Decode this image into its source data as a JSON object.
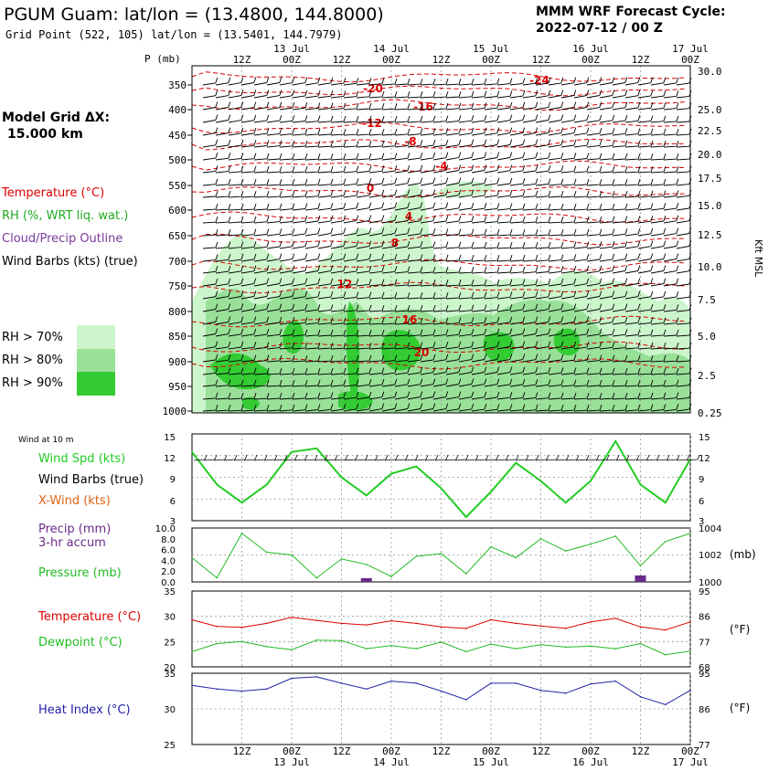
{
  "header": {
    "title": "PGUM Guam:  lat/lon = (13.4800, 144.8000)",
    "subtitle": "Grid Point (522, 105) lat/lon = (13.5401, 144.7979)",
    "forecast_label": "MMM WRF Forecast Cycle:",
    "forecast_cycle": "2022-07-12 / 00  Z",
    "model_grid_label": "Model Grid ΔX:",
    "model_grid_value": "15.000 km",
    "pressure_axis_title": "P (mb)",
    "height_axis_title": "Kft MSL"
  },
  "time_axis": {
    "hour_labels": [
      "12Z",
      "00Z",
      "12Z",
      "00Z",
      "12Z",
      "00Z",
      "12Z",
      "00Z",
      "12Z",
      "00Z"
    ],
    "date_labels": [
      "13 Jul",
      "14 Jul",
      "15 Jul",
      "16 Jul",
      "17 Jul"
    ]
  },
  "legend": {
    "temperature": "Temperature (°C)",
    "rh": "RH (%, WRT liq. wat.)",
    "cloud": "Cloud/Precip Outline",
    "barbs": "Wind Barbs (kts) (true)",
    "rh70": "RH > 70%",
    "rh80": "RH > 80%",
    "rh90": "RH > 90%"
  },
  "colors": {
    "temperature": "#dd0000",
    "rh70": "#ccf5cc",
    "rh80": "#99e099",
    "rh90": "#33cc33",
    "wind_speed": "#22cc22",
    "x_wind": "#e06010",
    "precip": "#6a2a8a",
    "pressure": "#22bb22",
    "dewpoint": "#22bb22",
    "heat_index": "#2222aa",
    "grid": "#999999"
  },
  "chart_data": [
    {
      "type": "heatmap",
      "title": "",
      "yaxis_pressure_ticks": [
        "350",
        "400",
        "450",
        "500",
        "550",
        "600",
        "650",
        "700",
        "750",
        "800",
        "850",
        "900",
        "950",
        "1000"
      ],
      "yaxis_height_ticks": [
        "30.0",
        "25.0",
        "22.5",
        "20.0",
        "17.5",
        "15.0",
        "12.5",
        "10.0",
        "7.5",
        "5.0",
        "2.5",
        "0.25"
      ],
      "temperature_contour_labels": [
        "-24",
        "-20",
        "-16",
        "-12",
        "-8",
        "-4",
        "0",
        "4",
        "8",
        "12",
        "16",
        "20"
      ]
    },
    {
      "type": "line",
      "panel_label": "Wind at 10 m",
      "legend": [
        "Wind Spd (kts)",
        "Wind Barbs (true)",
        "X-Wind (kts)"
      ],
      "y_ticks": [
        "15",
        "12",
        "9",
        "6",
        "3"
      ],
      "ylim": [
        3,
        15
      ],
      "x_hours": [
        0,
        6,
        12,
        18,
        24,
        30,
        36,
        42,
        48,
        54,
        60,
        66,
        72,
        78,
        84,
        90,
        96,
        102,
        108,
        114,
        120
      ],
      "series": [
        {
          "name": "Wind Spd (kts)",
          "values": [
            12.5,
            8.0,
            5.5,
            8.0,
            12.5,
            13.0,
            9.0,
            6.5,
            9.5,
            10.5,
            7.5,
            3.5,
            7.0,
            11.0,
            8.5,
            5.5,
            8.5,
            14.0,
            8.0,
            5.5,
            11.5
          ]
        }
      ]
    },
    {
      "type": "line",
      "legend": [
        "Precip (mm)",
        "3-hr accum",
        "Pressure (mb)"
      ],
      "left_ticks": [
        "10.0",
        "8.0",
        "6.0",
        "4.0",
        "2.0",
        "0.0"
      ],
      "right_ticks": [
        "1004",
        "1002",
        "1000"
      ],
      "right_unit": "(mb)",
      "ylim_precip": [
        0,
        10
      ],
      "ylim_pressure": [
        1000,
        1004
      ],
      "x_hours": [
        0,
        6,
        12,
        18,
        24,
        30,
        36,
        42,
        48,
        54,
        60,
        66,
        72,
        78,
        84,
        90,
        96,
        102,
        108,
        114,
        120
      ],
      "series": [
        {
          "name": "Pressure (mb)",
          "values": [
            1001.8,
            1000.3,
            1003.6,
            1002.2,
            1002.0,
            1000.3,
            1001.7,
            1001.3,
            1000.4,
            1001.9,
            1002.1,
            1000.6,
            1002.6,
            1001.8,
            1003.2,
            1002.3,
            1002.8,
            1003.4,
            1001.2,
            1003.0,
            1003.6
          ]
        },
        {
          "name": "Precip (mm)",
          "values": [
            0,
            0,
            0,
            0,
            0,
            0,
            0,
            0.7,
            0,
            0,
            0,
            0,
            0,
            0,
            0,
            0,
            0,
            0,
            1.2,
            0,
            0
          ]
        }
      ]
    },
    {
      "type": "line",
      "legend": [
        "Temperature (°C)",
        "Dewpoint (°C)"
      ],
      "left_ticks": [
        "35",
        "30",
        "25",
        "20"
      ],
      "right_ticks": [
        "95",
        "86",
        "77",
        "68"
      ],
      "right_unit": "(°F)",
      "ylim": [
        20,
        35
      ],
      "x_hours": [
        0,
        6,
        12,
        18,
        24,
        30,
        36,
        42,
        48,
        54,
        60,
        66,
        72,
        78,
        84,
        90,
        96,
        102,
        108,
        114,
        120
      ],
      "series": [
        {
          "name": "Temperature (°C)",
          "values": [
            29.3,
            28.0,
            27.8,
            28.6,
            29.8,
            29.2,
            28.6,
            28.3,
            29.1,
            28.6,
            27.9,
            27.6,
            29.3,
            28.6,
            28.1,
            27.6,
            28.9,
            29.6,
            27.9,
            27.3,
            28.9
          ]
        },
        {
          "name": "Dewpoint (°C)",
          "values": [
            23.0,
            24.6,
            25.0,
            24.0,
            23.4,
            25.3,
            25.2,
            23.6,
            24.2,
            23.6,
            24.9,
            23.0,
            24.5,
            23.6,
            24.4,
            23.9,
            24.1,
            23.6,
            24.6,
            22.4,
            23.1
          ]
        }
      ]
    },
    {
      "type": "line",
      "legend": [
        "Heat Index (°C)"
      ],
      "left_ticks": [
        "35",
        "30",
        "25"
      ],
      "right_ticks": [
        "95",
        "86",
        "77"
      ],
      "right_unit": "(°F)",
      "ylim": [
        25,
        35
      ],
      "x_hours": [
        0,
        6,
        12,
        18,
        24,
        30,
        36,
        42,
        48,
        54,
        60,
        66,
        72,
        78,
        84,
        90,
        96,
        102,
        108,
        114,
        120
      ],
      "series": [
        {
          "name": "Heat Index (°C)",
          "values": [
            33.3,
            32.8,
            32.5,
            32.8,
            34.3,
            34.5,
            33.6,
            32.8,
            33.9,
            33.6,
            32.5,
            31.3,
            33.6,
            33.6,
            32.6,
            32.2,
            33.5,
            33.9,
            31.7,
            30.6,
            32.6
          ]
        }
      ]
    }
  ]
}
